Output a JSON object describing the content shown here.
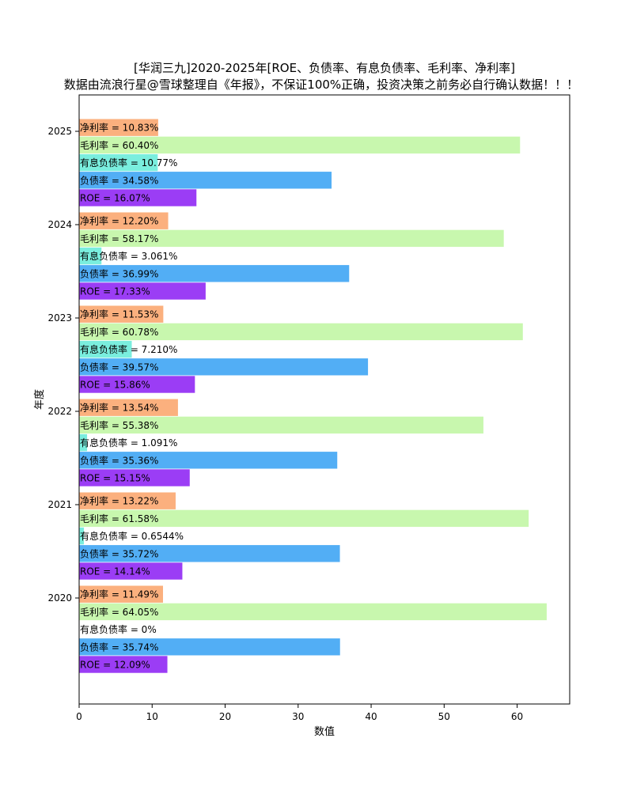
{
  "chart_data": {
    "type": "bar",
    "orientation": "horizontal",
    "title": "[华润三九]2020-2025年[ROE、负债率、有息负债率、毛利率、净利率]",
    "subtitle": "数据由流浪行星@雪球整理自《年报》，不保证100%正确，投资决策之前务必自行确认数据！！！",
    "xlabel": "数值",
    "ylabel": "年度",
    "xlim": [
      0,
      67.2
    ],
    "xticks": [
      "0",
      "10",
      "20",
      "30",
      "40",
      "50",
      "60"
    ],
    "grid": false,
    "legend": "none",
    "categories": [
      "2020",
      "2021",
      "2022",
      "2023",
      "2024",
      "2025"
    ],
    "series": [
      {
        "name": "ROE",
        "color": "#9b3df5",
        "values": [
          12.09,
          14.14,
          15.15,
          15.86,
          17.33,
          16.07
        ],
        "labels": [
          "ROE = 12.09%",
          "ROE = 14.14%",
          "ROE = 15.15%",
          "ROE = 15.86%",
          "ROE = 17.33%",
          "ROE = 16.07%"
        ]
      },
      {
        "name": "负债率",
        "color": "#52aef5",
        "values": [
          35.74,
          35.72,
          35.36,
          39.57,
          36.99,
          34.58
        ],
        "labels": [
          "负债率 = 35.74%",
          "负债率 = 35.72%",
          "负债率 = 35.36%",
          "负债率 = 39.57%",
          "负债率 = 36.99%",
          "负债率 = 34.58%"
        ]
      },
      {
        "name": "有息负债率",
        "color": "#7aeede",
        "values": [
          0,
          0.6544,
          1.091,
          7.21,
          3.061,
          10.77
        ],
        "labels": [
          "有息负债率 = 0%",
          "有息负债率 = 0.6544%",
          "有息负债率 = 1.091%",
          "有息负债率 = 7.210%",
          "有息负债率 = 3.061%",
          "有息负债率 = 10.77%"
        ]
      },
      {
        "name": "毛利率",
        "color": "#c8f7ae",
        "values": [
          64.05,
          61.58,
          55.38,
          60.78,
          58.17,
          60.4
        ],
        "labels": [
          "毛利率 = 64.05%",
          "毛利率 = 61.58%",
          "毛利率 = 55.38%",
          "毛利率 = 60.78%",
          "毛利率 = 58.17%",
          "毛利率 = 60.40%"
        ]
      },
      {
        "name": "净利率",
        "color": "#fbb07e",
        "values": [
          11.49,
          13.22,
          13.54,
          11.53,
          12.2,
          10.83
        ],
        "labels": [
          "净利率 = 11.49%",
          "净利率 = 13.22%",
          "净利率 = 13.54%",
          "净利率 = 11.53%",
          "净利率 = 12.20%",
          "净利率 = 10.83%"
        ]
      }
    ]
  }
}
